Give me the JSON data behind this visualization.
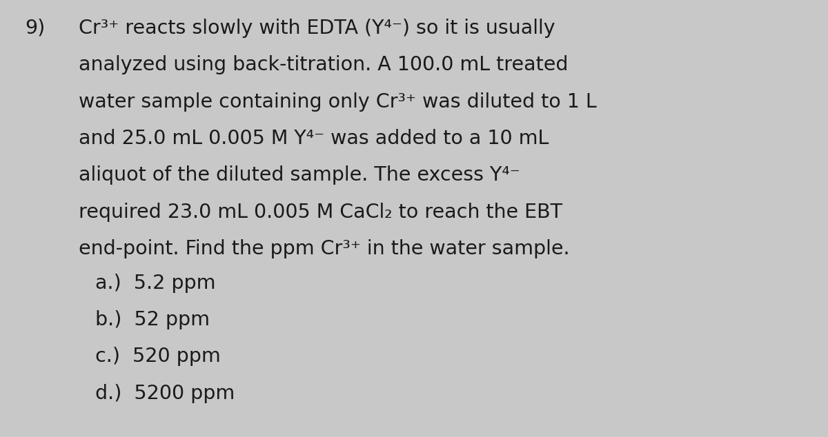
{
  "question_number": "9)",
  "line1": "Cr³⁺ reacts slowly with EDTA (Y⁴⁻) so it is usually",
  "line2": "analyzed using back-titration. A 100.0 mL treated",
  "line3": "water sample containing only Cr³⁺ was diluted to 1 L",
  "line4": "and 25.0 mL 0.005 M Y⁴⁻ was added to a 10 mL",
  "line5": "aliquot of the diluted sample. The excess Y⁴⁻",
  "line6": "required 23.0 mL 0.005 M CaCl₂ to reach the EBT",
  "line7": "end-point. Find the ppm Cr³⁺ in the water sample.",
  "choice_a": "a.)  5.2 ppm",
  "choice_b": "b.)  52 ppm",
  "choice_c": "c.)  520 ppm",
  "choice_d": "d.)  5200 ppm",
  "bg_color": "#c8c8c8",
  "text_color": "#1a1a1a",
  "font_size_main": 20.5,
  "font_size_choices": 20.5,
  "fig_width": 12.0,
  "fig_height": 6.34
}
